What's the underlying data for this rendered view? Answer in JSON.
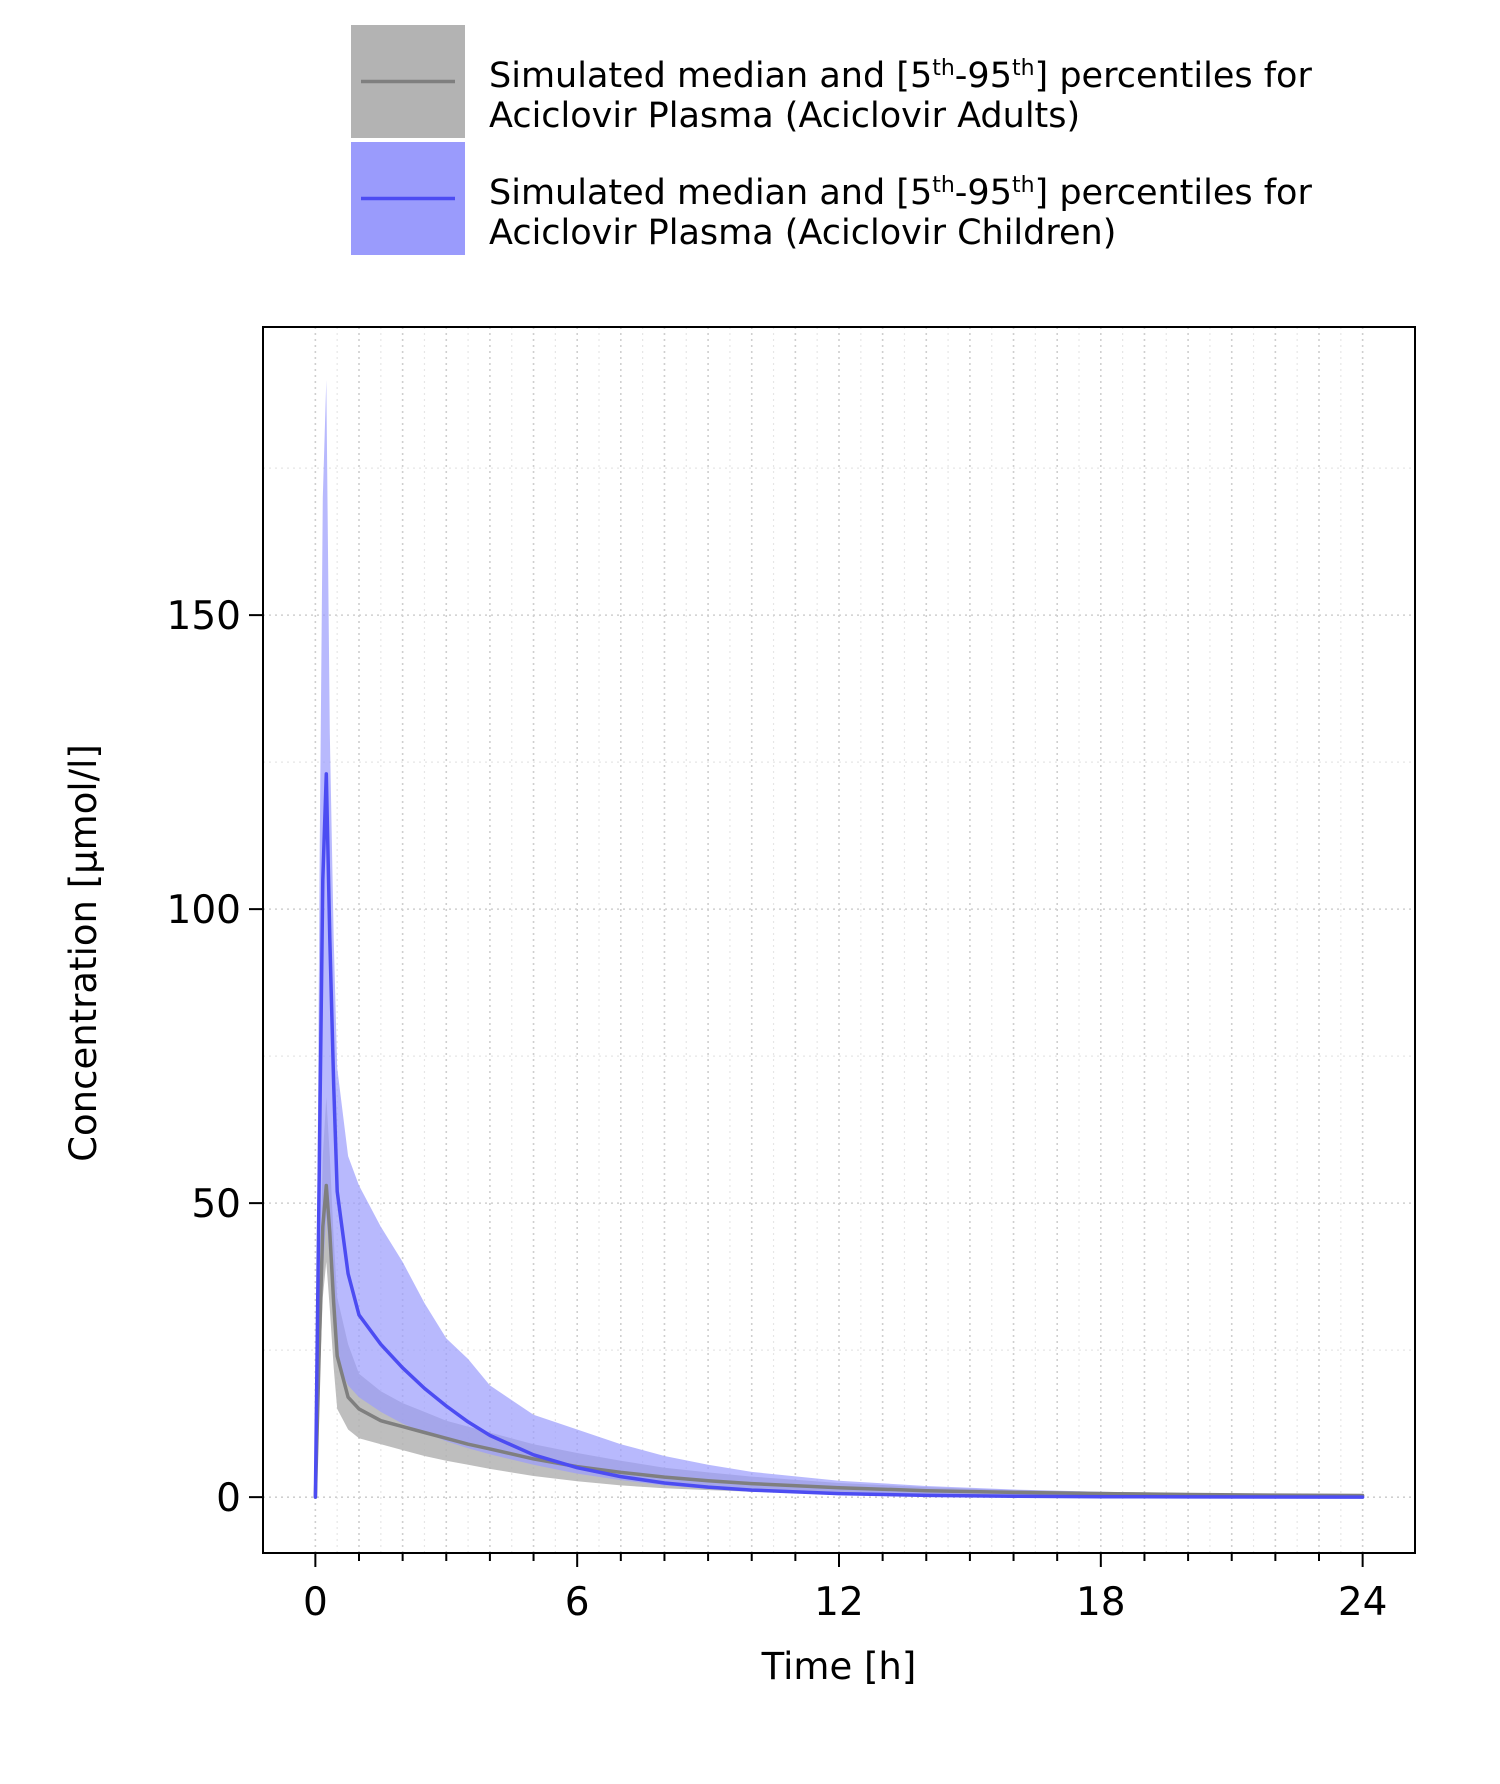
{
  "legend": {
    "entries": [
      {
        "line1_parts": [
          "Simulated median and [5",
          "th",
          "-95",
          "th",
          "] percentiles for"
        ],
        "line2": "Aciclovir Plasma (Aciclovir Adults)",
        "band_color": "#b3b3b3",
        "line_color": "#7f7f7f"
      },
      {
        "line1_parts": [
          "Simulated median and [5",
          "th",
          "-95",
          "th",
          "] percentiles for"
        ],
        "line2": "Aciclovir Plasma (Aciclovir Children)",
        "band_color": "#9a9bfc",
        "line_color": "#4c4cf2"
      }
    ]
  },
  "chart_data": {
    "type": "area",
    "xlabel": "Time [h]",
    "ylabel": "Concentration [µmol/l]",
    "xlim": [
      -1.2,
      25.2
    ],
    "ylim": [
      -9.5,
      199
    ],
    "x_ticks": [
      0,
      6,
      12,
      18,
      24
    ],
    "x_tick_labels": [
      "0",
      "6",
      "12",
      "18",
      "24"
    ],
    "y_ticks": [
      0,
      50,
      100,
      150
    ],
    "y_tick_labels": [
      "0",
      "50",
      "100",
      "150"
    ],
    "grid": true,
    "legend_position": "top",
    "series": [
      {
        "name": "Simulated median and [5th-95th] percentiles for Aciclovir Plasma (Aciclovir Adults)",
        "color": "#7f7f7f",
        "band_color": "#b3b3b3",
        "x": [
          0,
          0.1,
          0.17,
          0.25,
          0.33,
          0.42,
          0.5,
          0.75,
          1,
          1.5,
          2,
          2.5,
          3,
          3.5,
          4,
          5,
          6,
          7,
          8,
          9,
          10,
          12,
          14,
          16,
          18,
          20,
          22,
          24
        ],
        "median": [
          0,
          28,
          46,
          53,
          45,
          33,
          24,
          17,
          15,
          13,
          12,
          11,
          10,
          9,
          8.2,
          6.5,
          5.2,
          4.2,
          3.4,
          2.8,
          2.3,
          1.6,
          1.1,
          0.8,
          0.6,
          0.45,
          0.35,
          0.28
        ],
        "upper": [
          0,
          35,
          58,
          68,
          58,
          44,
          34,
          26,
          21,
          18,
          16,
          14.5,
          13,
          12,
          11,
          9,
          7.5,
          6.2,
          5,
          4.2,
          3.5,
          2.4,
          1.7,
          1.2,
          0.9,
          0.7,
          0.55,
          0.45
        ],
        "lower": [
          0,
          20,
          34,
          40,
          32,
          22,
          15,
          11.5,
          10,
          9,
          8,
          7,
          6.2,
          5.5,
          4.8,
          3.6,
          2.7,
          2,
          1.5,
          1.2,
          0.9,
          0.55,
          0.35,
          0.22,
          0.15,
          0.1,
          0.07,
          0.05
        ]
      },
      {
        "name": "Simulated median and [5th-95th] percentiles for Aciclovir Plasma (Aciclovir Children)",
        "color": "#4c4cf2",
        "band_color": "#9a9bfc",
        "x": [
          0,
          0.1,
          0.17,
          0.25,
          0.33,
          0.42,
          0.5,
          0.75,
          1,
          1.5,
          2,
          2.5,
          3,
          3.5,
          4,
          5,
          6,
          7,
          8,
          9,
          10,
          12,
          14,
          16,
          18,
          20,
          22,
          24
        ],
        "median": [
          0,
          62,
          105,
          123,
          95,
          70,
          52,
          38,
          31,
          26,
          22,
          18.5,
          15.5,
          12.8,
          10.5,
          7.2,
          5,
          3.5,
          2.4,
          1.7,
          1.2,
          0.6,
          0.3,
          0.15,
          0.08,
          0.04,
          0.02,
          0.01
        ],
        "upper": [
          0,
          110,
          170,
          190,
          130,
          95,
          73,
          58,
          53,
          46,
          40,
          33,
          27,
          23.5,
          19,
          14,
          11.5,
          9,
          7,
          5.5,
          4.3,
          2.8,
          1.9,
          1.3,
          0.9,
          0.6,
          0.45,
          0.35
        ],
        "lower": [
          0,
          20,
          38,
          48,
          40,
          30,
          23,
          19,
          17,
          14.5,
          12.5,
          11,
          9.5,
          8.3,
          7.3,
          5.5,
          4,
          2.9,
          2,
          1.4,
          1,
          0.5,
          0.25,
          0.12,
          0.06,
          0.03,
          0.02,
          0.01
        ]
      }
    ]
  }
}
